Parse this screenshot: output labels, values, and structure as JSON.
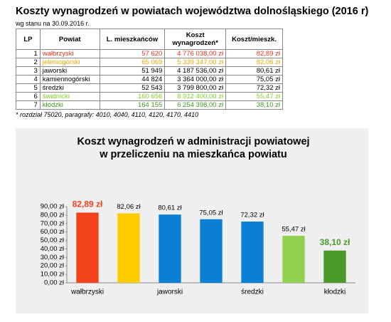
{
  "header": {
    "title": "Koszty wynagrodzeń w powiatach województwa dolnośląskiego (2016 r)",
    "subtitle": "wg stanu na 30.09.2016 r."
  },
  "table": {
    "columns": [
      "LP",
      "Powiat",
      "L. mieszkańców",
      "Koszt wynagrodzeń*",
      "Koszt/mieszk."
    ],
    "rows": [
      [
        1,
        "wałbrzyski",
        "57 620",
        "4 776 038,00 zł",
        "82,89 zł"
      ],
      [
        2,
        "jeleniogórski",
        "65 069",
        "5 339 347,00 zł",
        "82,06 zł"
      ],
      [
        3,
        "jaworski",
        "51 949",
        "4 187 536,00 zł",
        "80,61 zł"
      ],
      [
        4,
        "kamiennogórski",
        "44 824",
        "3 364 000,00 zł",
        "75,05 zł"
      ],
      [
        5,
        "średzki",
        "52 543",
        "3 799 800,00 zł",
        "72,32 zł"
      ],
      [
        6,
        "świdnicki",
        "160 656",
        "8 912 400,00 zł",
        "55,47 zł"
      ],
      [
        7,
        "kłodzki",
        "164 155",
        "6 254 398,00 zł",
        "38,10 zł"
      ]
    ],
    "row_colors": [
      "#e8341c",
      "#e8a800",
      "#000000",
      "#000000",
      "#000000",
      "#7ed321",
      "#3c9a1e"
    ]
  },
  "footnote": "* rozdział 75020, paragrafy: 4010, 4040, 4110, 4120, 4170, 4410",
  "chart_data": {
    "type": "bar",
    "title": [
      "Koszt wynagrodzeń w administracji powiatowej",
      "w przeliczeniu na mieszkańca powiatu"
    ],
    "categories": [
      "wałbrzyski",
      null,
      "jaworski",
      null,
      "średzki",
      null,
      "kłodzki"
    ],
    "values": [
      82.89,
      82.06,
      80.61,
      75.05,
      72.32,
      55.47,
      38.1
    ],
    "value_labels": [
      "82,89 zł",
      "82,06 zł",
      "80,61 zł",
      "75,05 zł",
      "72,32 zł",
      "55,47 zł",
      "38,10 zł"
    ],
    "colors": [
      "#f2421b",
      "#ffcc00",
      "#0b7fd4",
      "#0b7fd4",
      "#0b7fd4",
      "#92d050",
      "#4a9a2a"
    ],
    "value_label_colors": [
      "#f2421b",
      "#000000",
      "#000000",
      "#000000",
      "#000000",
      "#000000",
      "#4a9a2a"
    ],
    "ylim": [
      0,
      90
    ],
    "yticks": [
      {
        "value": 0,
        "label": "0,00 zł"
      },
      {
        "value": 10,
        "label": "10,00 zł"
      },
      {
        "value": 20,
        "label": "20,00 zł"
      },
      {
        "value": 30,
        "label": "30,00 zł"
      },
      {
        "value": 40,
        "label": "40,00 zł"
      },
      {
        "value": 50,
        "label": "50,00 zł"
      },
      {
        "value": 60,
        "label": "60,00 zł"
      },
      {
        "value": 70,
        "label": "70,00 zł"
      },
      {
        "value": 80,
        "label": "80,00 zł"
      },
      {
        "value": 90,
        "label": "90,00 zł"
      }
    ],
    "grid": false
  }
}
